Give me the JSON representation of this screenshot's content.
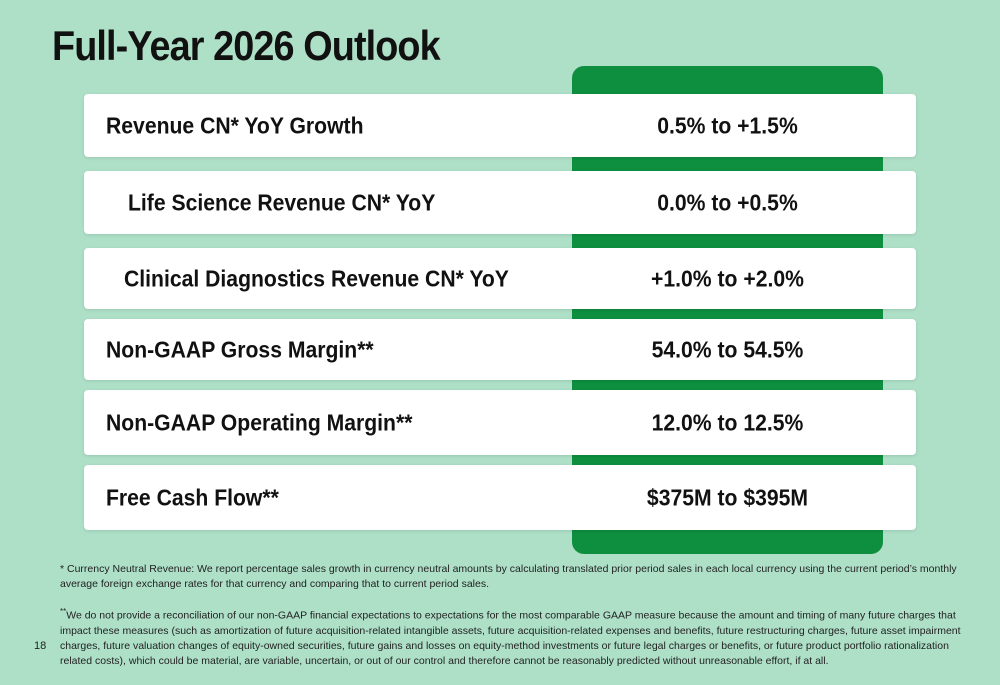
{
  "slide": {
    "title": "Full-Year 2026 Outlook",
    "page_number": "18"
  },
  "rows": [
    {
      "label": "Revenue CN* YoY Growth",
      "value": "0.5% to +1.5%"
    },
    {
      "label": "Life Science Revenue CN* YoY",
      "value": "0.0% to +0.5%"
    },
    {
      "label": "Clinical Diagnostics Revenue CN* YoY",
      "value": "+1.0% to +2.0%"
    },
    {
      "label": "Non-GAAP Gross Margin**",
      "value": "54.0% to 54.5%"
    },
    {
      "label": "Non-GAAP Operating Margin**",
      "value": "12.0% to 12.5%"
    },
    {
      "label": "Free Cash Flow**",
      "value": "$375M to $395M"
    }
  ],
  "footnotes": {
    "single": "* Currency Neutral Revenue: We report percentage sales growth in currency neutral amounts by calculating translated prior period sales in each local currency using the current period’s monthly average foreign exchange rates for that currency and comparing that to current period sales.",
    "double_mark": "**",
    "double": "We do not provide a reconciliation of our non-GAAP financial expectations to expectations for the most comparable GAAP measure because the amount and timing of many future charges that impact these measures (such as amortization of future acquisition-related intangible assets, future acquisition-related expenses and benefits, future restructuring charges, future asset impairment charges, future valuation changes of equity-owned securities, future gains and losses on equity-method investments or future legal charges or benefits, or future product portfolio rationalization related costs), which could be material, are variable, uncertain, or out of our control and therefore cannot be reasonably predicted without unreasonable effort, if at all."
  },
  "colors": {
    "background": "#aee0c8",
    "accent_green": "#0d8f3f",
    "row_background": "#ffffff"
  }
}
